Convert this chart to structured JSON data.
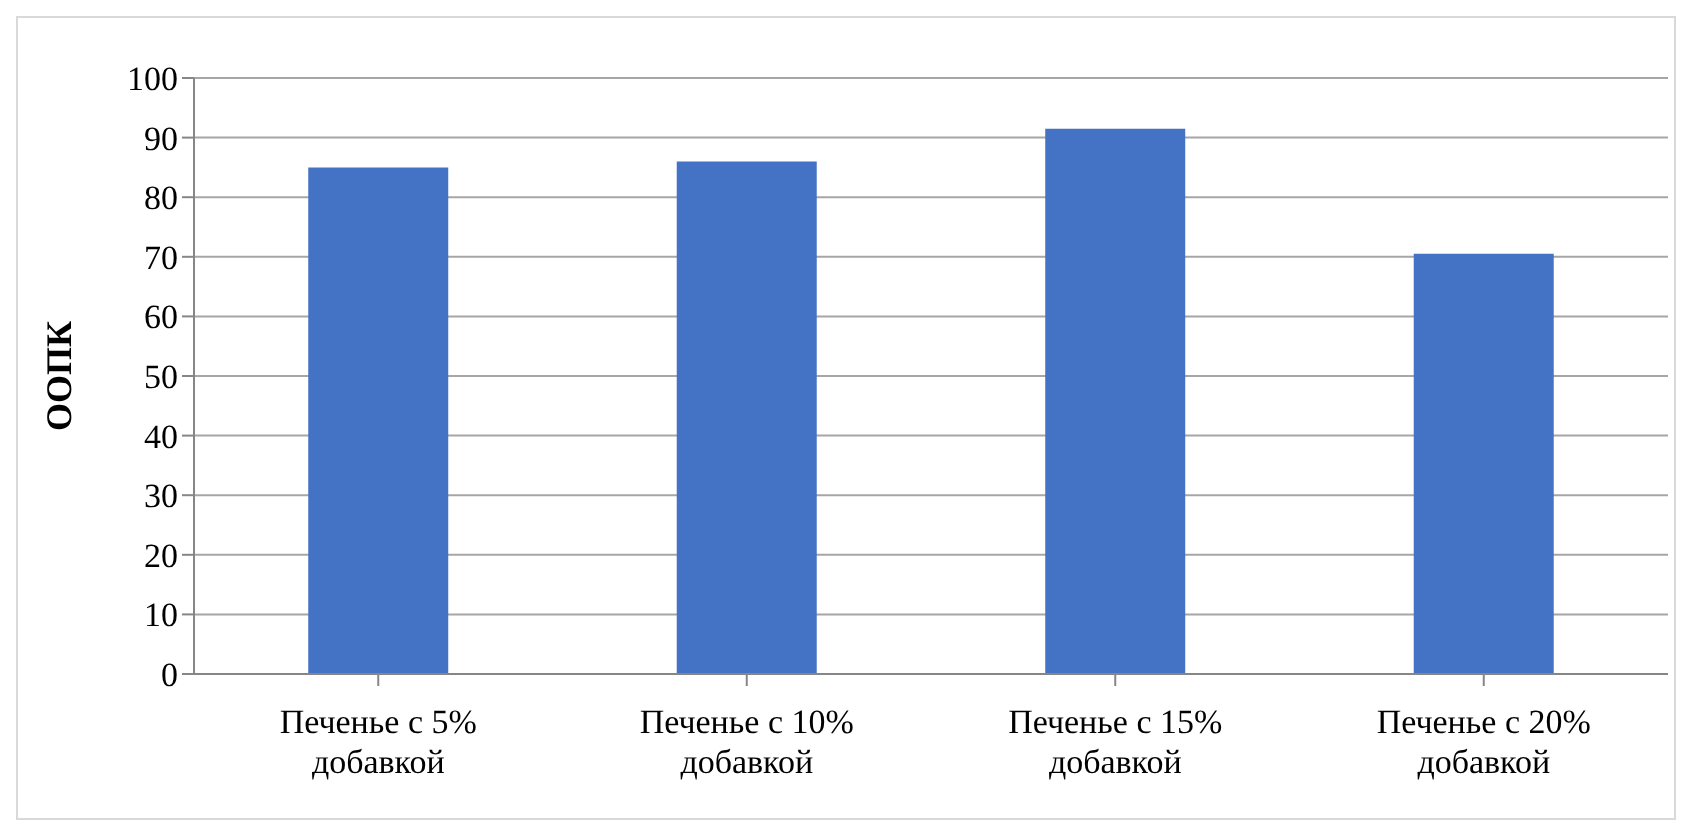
{
  "chart_data": {
    "type": "bar",
    "ylabel": "ООПК",
    "categories": [
      "Печенье с 5% добавкой",
      "Печенье с 10% добавкой",
      "Печенье с 15% добавкой",
      "Печенье с 20% добавкой"
    ],
    "values": [
      85,
      86,
      91.5,
      70.5
    ],
    "color": "#4472c4",
    "ylim": [
      0,
      100
    ],
    "yticks": [
      0,
      10,
      20,
      30,
      40,
      50,
      60,
      70,
      80,
      90,
      100
    ],
    "grid": "y"
  }
}
